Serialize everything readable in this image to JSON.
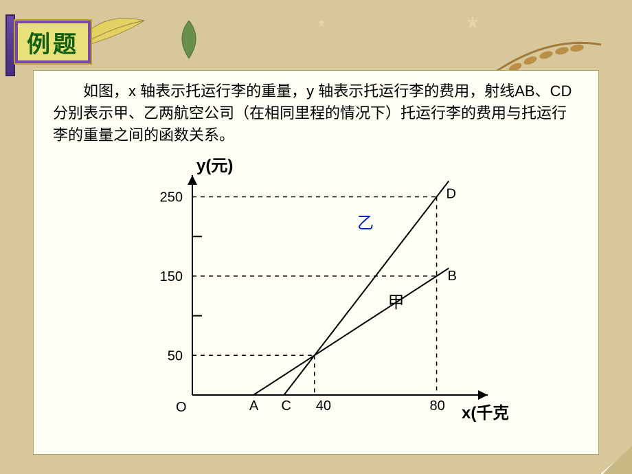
{
  "title": "例题",
  "problem_text": "如图，x 轴表示托运行李的重量，y 轴表示托运行李的费用，射线AB、CD分别表示甲、乙两航空公司（在相同里程的情况下）托运行李的费用与托运行李的重量之间的函数关系。",
  "chart": {
    "type": "line",
    "x_label": "x(千克)",
    "y_label": "y(元)",
    "origin_label": "O",
    "x_ticks": [
      40,
      80
    ],
    "y_ticks": [
      50,
      150,
      250
    ],
    "y_minor": [
      100,
      200
    ],
    "xlim": [
      0,
      90
    ],
    "ylim": [
      0,
      260
    ],
    "axis_color": "#000000",
    "dash_color": "#000000",
    "background_color": "#fffef5",
    "text_color": "#000000",
    "line_width": 2,
    "dash_pattern": "6 6",
    "tick_fontsize": 20,
    "axis_label_fontsize": 24,
    "series": [
      {
        "name": "甲",
        "label": "甲",
        "label_color": "#000000",
        "label_pos": {
          "x": 64,
          "y": 110
        },
        "color": "#000000",
        "points": [
          {
            "x": 20,
            "y": 0,
            "tag": "A"
          },
          {
            "x": 40,
            "y": 50
          },
          {
            "x": 80,
            "y": 150,
            "tag": "B"
          }
        ],
        "point_a_label": "A",
        "point_b_label": "B"
      },
      {
        "name": "乙",
        "label": "乙",
        "label_color": "#0020c0",
        "label_pos": {
          "x": 54,
          "y": 210
        },
        "color": "#000000",
        "points": [
          {
            "x": 30,
            "y": 0,
            "tag": "C"
          },
          {
            "x": 40,
            "y": 50
          },
          {
            "x": 80,
            "y": 250,
            "tag": "D"
          }
        ],
        "point_c_label": "C",
        "point_d_label": "D"
      }
    ]
  }
}
